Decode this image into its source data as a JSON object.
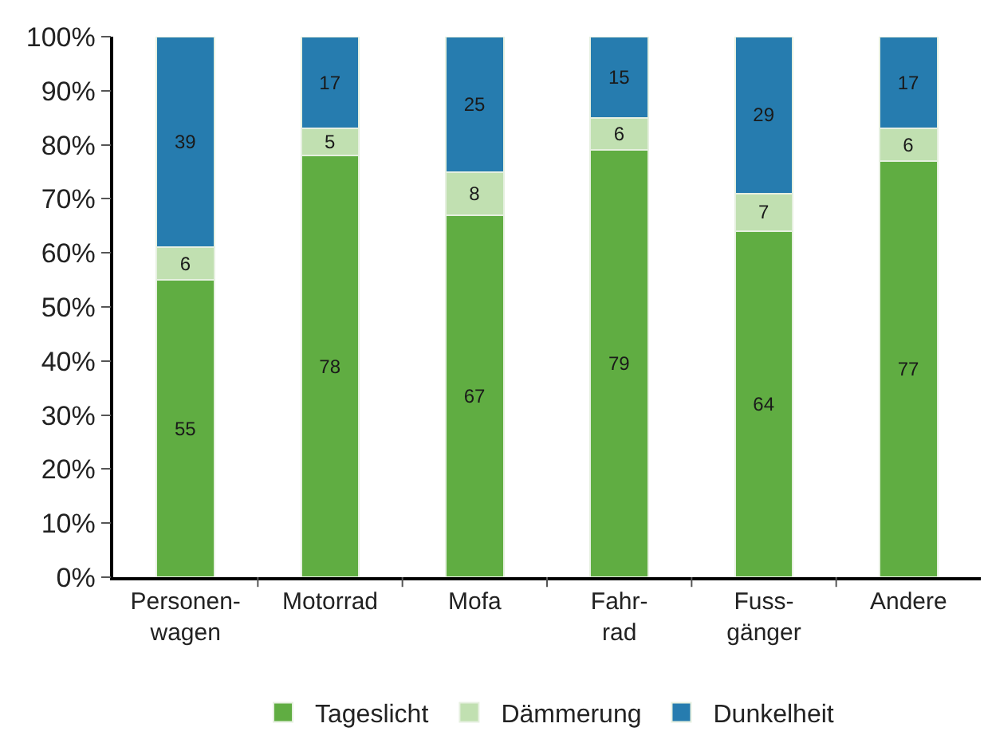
{
  "chart_data": {
    "type": "bar",
    "stacked": true,
    "categories": [
      "Personen-\nwagen",
      "Motorrad",
      "Mofa",
      "Fahr-\nrad",
      "Fuss-\ngänger",
      "Andere"
    ],
    "series": [
      {
        "name": "Tageslicht",
        "color": "#60ad42",
        "values": [
          55,
          78,
          67,
          79,
          64,
          77
        ]
      },
      {
        "name": "Dämmerung",
        "color": "#c1e0b1",
        "values": [
          6,
          5,
          8,
          6,
          7,
          6
        ]
      },
      {
        "name": "Dunkelheit",
        "color": "#267caf",
        "values": [
          39,
          17,
          25,
          15,
          29,
          17
        ]
      }
    ],
    "ylim": [
      0,
      100
    ],
    "yticks": [
      {
        "value": 0,
        "label": "0%"
      },
      {
        "value": 10,
        "label": "10%"
      },
      {
        "value": 20,
        "label": "20%"
      },
      {
        "value": 30,
        "label": "30%"
      },
      {
        "value": 40,
        "label": "40%"
      },
      {
        "value": 50,
        "label": "50%"
      },
      {
        "value": 60,
        "label": "60%"
      },
      {
        "value": 70,
        "label": "70%"
      },
      {
        "value": 80,
        "label": "80%"
      },
      {
        "value": 90,
        "label": "90%"
      },
      {
        "value": 100,
        "label": "100%"
      }
    ],
    "data_labels": true,
    "legend": "bottom"
  }
}
